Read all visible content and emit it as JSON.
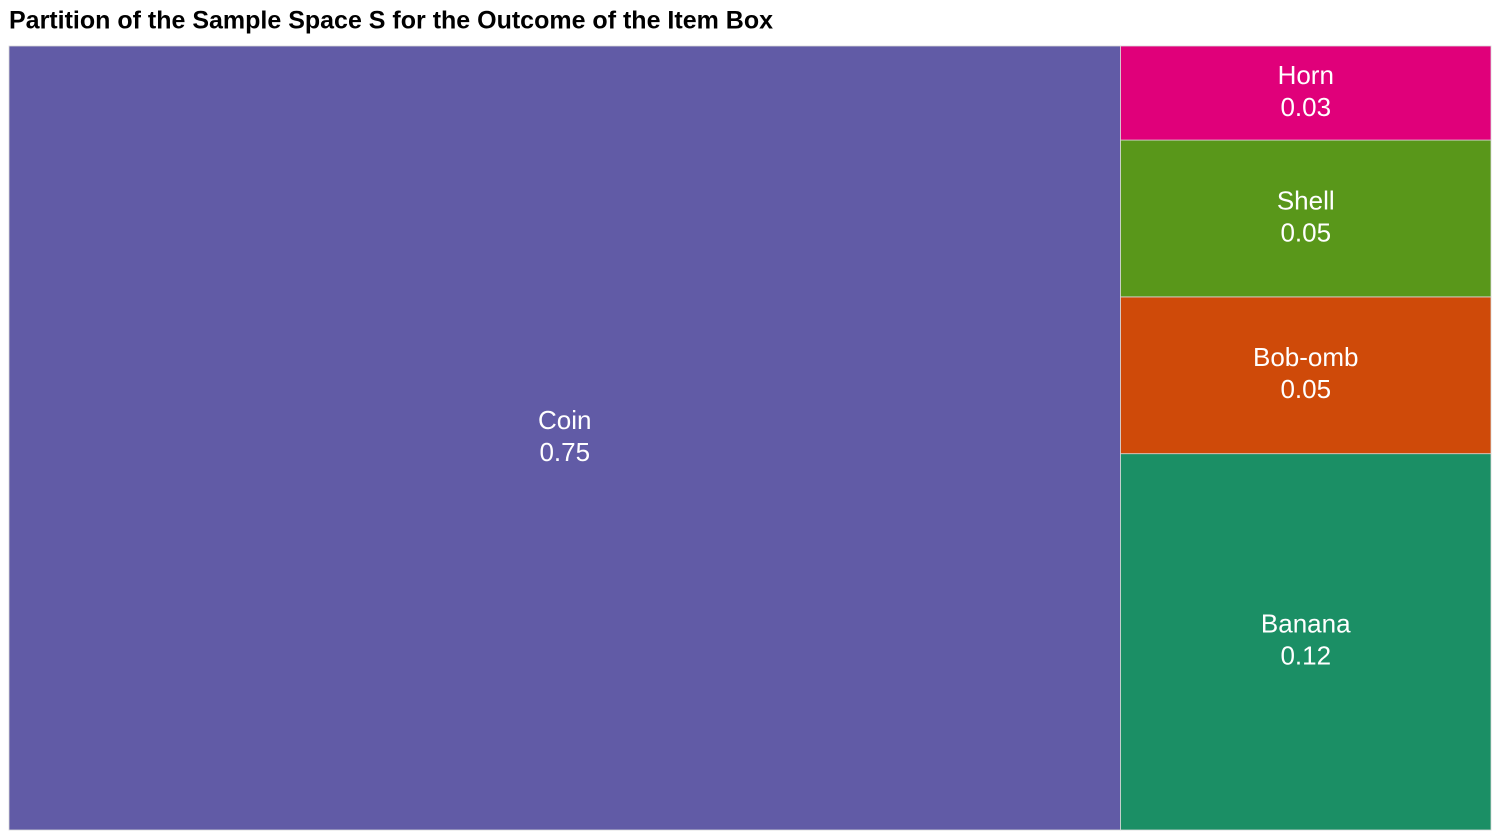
{
  "chart_data": {
    "type": "treemap",
    "title": "Partition of the Sample Space S for the Outcome of the Item Box",
    "categories": [
      "Coin",
      "Banana",
      "Bob-omb",
      "Shell",
      "Horn"
    ],
    "values": [
      0.75,
      0.12,
      0.05,
      0.05,
      0.03
    ],
    "colors": [
      "#615ba6",
      "#1b8f65",
      "#cf4a09",
      "#59971a",
      "#e0007a"
    ]
  }
}
